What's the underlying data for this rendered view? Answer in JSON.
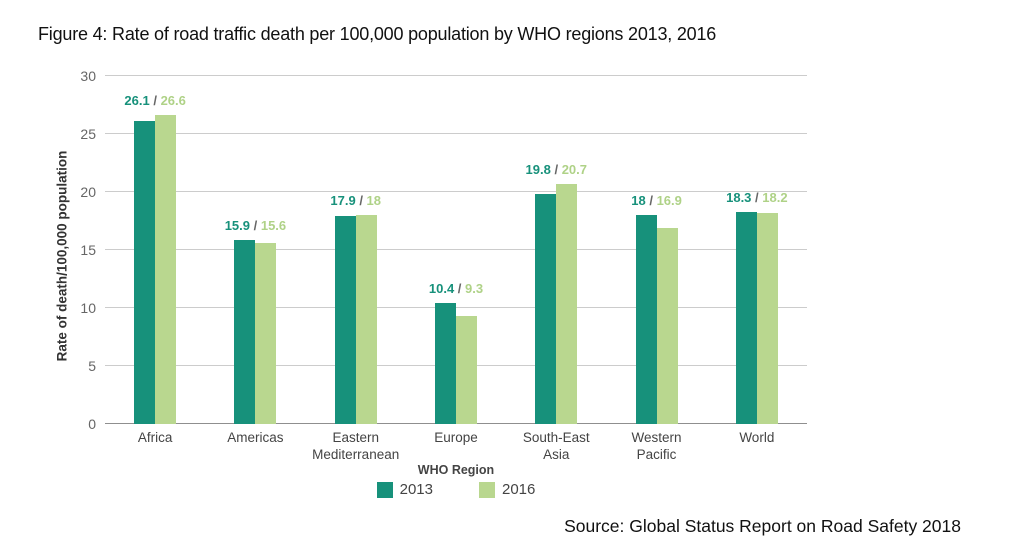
{
  "figure": {
    "title": "Figure 4: Rate of road traffic death per 100,000 population by WHO regions 2013, 2016",
    "source": "Source: Global Status Report on Road Safety 2018"
  },
  "chart_data": {
    "type": "bar",
    "title": "Figure 4: Rate of road traffic death per 100,000 population by WHO regions 2013, 2016",
    "categories": [
      "Africa",
      "Americas",
      "Eastern Mediterranean",
      "Europe",
      "South-East Asia",
      "Western Pacific",
      "World"
    ],
    "category_label_lines": [
      [
        "Africa"
      ],
      [
        "Americas"
      ],
      [
        "Eastern",
        "Mediterranean"
      ],
      [
        "Europe"
      ],
      [
        "South-East",
        "Asia"
      ],
      [
        "Western",
        "Pacific"
      ],
      [
        "World"
      ]
    ],
    "series": [
      {
        "name": "2013",
        "color": "#17917B",
        "values": [
          26.1,
          15.9,
          17.9,
          10.4,
          19.8,
          18,
          18.3
        ]
      },
      {
        "name": "2016",
        "color": "#B9D78F",
        "values": [
          26.6,
          15.6,
          18,
          9.3,
          20.7,
          16.9,
          18.2
        ]
      }
    ],
    "bar_labels": [
      "26.1 / 26.6",
      "15.9 / 15.6",
      "17.9 / 18",
      "10.4 / 9.3",
      "19.8 / 20.7",
      "18 / 16.9",
      "18.3 / 18.2"
    ],
    "xlabel": "WHO Region",
    "ylabel": "Rate of death/100,000 population",
    "ylim": [
      0,
      30
    ],
    "yticks": [
      0,
      5,
      10,
      15,
      20,
      25,
      30
    ],
    "grid": true,
    "legend_position": "bottom",
    "legend_title": "WHO Region"
  },
  "legend": {
    "title": "WHO Region",
    "items": [
      {
        "label": "2013",
        "color": "#17917B"
      },
      {
        "label": "2016",
        "color": "#B9D78F"
      }
    ]
  },
  "colors": {
    "series_2013": "#17917B",
    "series_2016": "#B9D78F",
    "label_2013": "#17917B",
    "label_2016": "#AFD287",
    "label_separator": "#666666",
    "gridline": "#cccccc",
    "axis_baseline": "#8f8f8f",
    "y_tick_text": "#666666",
    "category_text": "#444444"
  }
}
